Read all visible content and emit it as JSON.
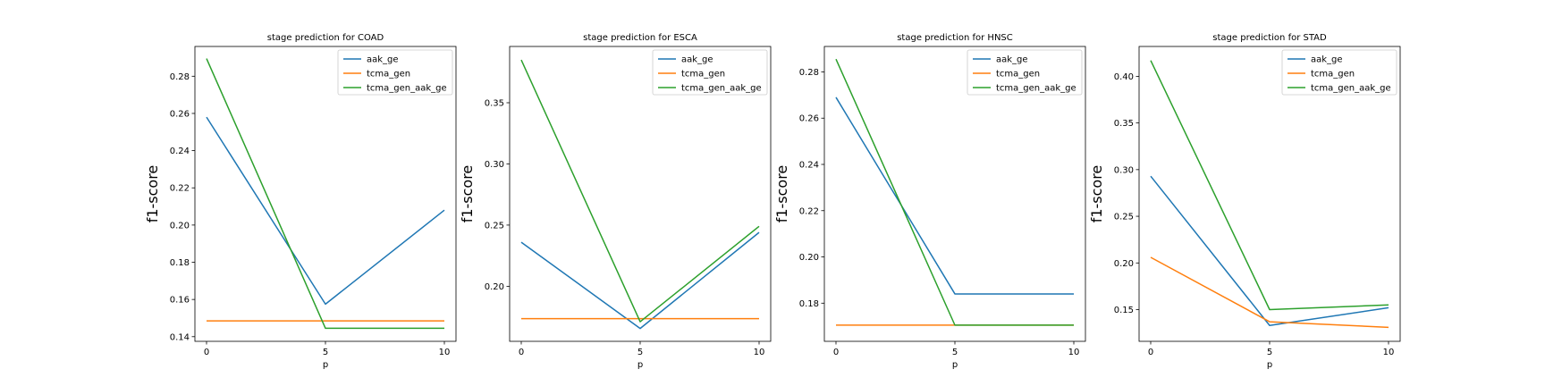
{
  "chart_data": [
    {
      "type": "line",
      "title": "stage prediction for COAD",
      "xlabel": "p",
      "ylabel": "f1-score",
      "x": [
        0,
        5,
        10
      ],
      "xticks": [
        "0",
        "5",
        "10"
      ],
      "ylim": [
        0.1375,
        0.296
      ],
      "yticks": [
        "0.14",
        "0.16",
        "0.18",
        "0.20",
        "0.22",
        "0.24",
        "0.26",
        "0.28"
      ],
      "legend": "upper right",
      "series": [
        {
          "name": "aak_ge",
          "color": "#1f77b4",
          "values": [
            0.258,
            0.1575,
            0.208
          ]
        },
        {
          "name": "tcma_gen",
          "color": "#ff7f0e",
          "values": [
            0.1485,
            0.1485,
            0.1485
          ]
        },
        {
          "name": "tcma_gen_aak_ge",
          "color": "#2ca02c",
          "values": [
            0.2895,
            0.1445,
            0.1445
          ]
        }
      ]
    },
    {
      "type": "line",
      "title": "stage prediction for ESCA",
      "xlabel": "p",
      "ylabel": "f1-score",
      "x": [
        0,
        5,
        10
      ],
      "xticks": [
        "0",
        "5",
        "10"
      ],
      "ylim": [
        0.155,
        0.396
      ],
      "yticks": [
        "0.20",
        "0.25",
        "0.30",
        "0.35"
      ],
      "legend": "upper right",
      "series": [
        {
          "name": "aak_ge",
          "color": "#1f77b4",
          "values": [
            0.236,
            0.1655,
            0.244
          ]
        },
        {
          "name": "tcma_gen",
          "color": "#ff7f0e",
          "values": [
            0.1735,
            0.1735,
            0.1735
          ]
        },
        {
          "name": "tcma_gen_aak_ge",
          "color": "#2ca02c",
          "values": [
            0.385,
            0.171,
            0.249
          ]
        }
      ]
    },
    {
      "type": "line",
      "title": "stage prediction for HNSC",
      "xlabel": "p",
      "ylabel": "f1-score",
      "x": [
        0,
        5,
        10
      ],
      "xticks": [
        "0",
        "5",
        "10"
      ],
      "ylim": [
        0.1635,
        0.291
      ],
      "yticks": [
        "0.18",
        "0.20",
        "0.22",
        "0.24",
        "0.26",
        "0.28"
      ],
      "legend": "upper right",
      "series": [
        {
          "name": "aak_ge",
          "color": "#1f77b4",
          "values": [
            0.269,
            0.184,
            0.184
          ]
        },
        {
          "name": "tcma_gen",
          "color": "#ff7f0e",
          "values": [
            0.1705,
            0.1705,
            0.1705
          ]
        },
        {
          "name": "tcma_gen_aak_ge",
          "color": "#2ca02c",
          "values": [
            0.2855,
            0.1705,
            0.1705
          ]
        }
      ]
    },
    {
      "type": "line",
      "title": "stage prediction for STAD",
      "xlabel": "p",
      "ylabel": "f1-score",
      "x": [
        0,
        5,
        10
      ],
      "xticks": [
        "0",
        "5",
        "10"
      ],
      "ylim": [
        0.116,
        0.432
      ],
      "yticks": [
        "0.15",
        "0.20",
        "0.25",
        "0.30",
        "0.35",
        "0.40"
      ],
      "legend": "upper right",
      "series": [
        {
          "name": "aak_ge",
          "color": "#1f77b4",
          "values": [
            0.293,
            0.133,
            0.152
          ]
        },
        {
          "name": "tcma_gen",
          "color": "#ff7f0e",
          "values": [
            0.206,
            0.137,
            0.131
          ]
        },
        {
          "name": "tcma_gen_aak_ge",
          "color": "#2ca02c",
          "values": [
            0.417,
            0.15,
            0.155
          ]
        }
      ]
    }
  ]
}
